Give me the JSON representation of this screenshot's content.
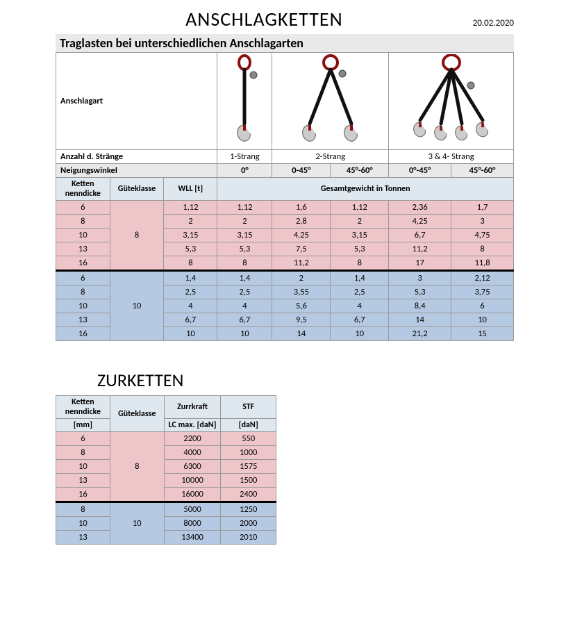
{
  "title1": "ANSCHLAGKETTEN",
  "date": "20.02.2020",
  "subtitle1": "Traglasten bei unterschiedlichen Anschlagarten",
  "labels": {
    "anschlagart": "Anschlagart",
    "anzahl": "Anzahl d. Stränge",
    "neigung": "Neigungswinkel",
    "ketten": "Ketten nenndicke",
    "guete": "Güteklasse",
    "wll": "WLL [t]",
    "gesamt": "Gesamtgewicht in Tonnen",
    "mm": "[mm]",
    "zurr": "Zurrkraft",
    "stf": "STF",
    "lcmax": "LC max. [daN]",
    "dan": "[daN]"
  },
  "straenge": [
    "1-Strang",
    "2-Strang",
    "3 & 4- Strang"
  ],
  "winkel": [
    "0°",
    "0-45°",
    "45°-60°",
    "0°-45°",
    "45°-60°"
  ],
  "guete_groups": [
    {
      "klasse": "8",
      "group_color": "pink",
      "rows": [
        {
          "d": "6",
          "v": [
            "1,12",
            "1,12",
            "1,6",
            "1,12",
            "2,36",
            "1,7"
          ]
        },
        {
          "d": "8",
          "v": [
            "2",
            "2",
            "2,8",
            "2",
            "4,25",
            "3"
          ]
        },
        {
          "d": "10",
          "v": [
            "3,15",
            "3,15",
            "4,25",
            "3,15",
            "6,7",
            "4,75"
          ]
        },
        {
          "d": "13",
          "v": [
            "5,3",
            "5,3",
            "7,5",
            "5,3",
            "11,2",
            "8"
          ]
        },
        {
          "d": "16",
          "v": [
            "8",
            "8",
            "11,2",
            "8",
            "17",
            "11,8"
          ]
        }
      ]
    },
    {
      "klasse": "10",
      "group_color": "blue",
      "rows": [
        {
          "d": "6",
          "v": [
            "1,4",
            "1,4",
            "2",
            "1,4",
            "3",
            "2,12"
          ]
        },
        {
          "d": "8",
          "v": [
            "2,5",
            "2,5",
            "3,55",
            "2,5",
            "5,3",
            "3,75"
          ]
        },
        {
          "d": "10",
          "v": [
            "4",
            "4",
            "5,6",
            "4",
            "8,4",
            "6"
          ]
        },
        {
          "d": "13",
          "v": [
            "6,7",
            "6,7",
            "9,5",
            "6,7",
            "14",
            "10"
          ]
        },
        {
          "d": "16",
          "v": [
            "10",
            "10",
            "14",
            "10",
            "21,2",
            "15"
          ]
        }
      ]
    }
  ],
  "title2": "ZURKETTEN",
  "guete_groups2": [
    {
      "klasse": "8",
      "group_color": "pink",
      "rows": [
        {
          "d": "6",
          "lc": "2200",
          "stf": "550"
        },
        {
          "d": "8",
          "lc": "4000",
          "stf": "1000"
        },
        {
          "d": "10",
          "lc": "6300",
          "stf": "1575"
        },
        {
          "d": "13",
          "lc": "10000",
          "stf": "1500"
        },
        {
          "d": "16",
          "lc": "16000",
          "stf": "2400"
        }
      ]
    },
    {
      "klasse": "10",
      "group_color": "blue",
      "rows": [
        {
          "d": "8",
          "lc": "5000",
          "stf": "1250"
        },
        {
          "d": "10",
          "lc": "8000",
          "stf": "2000"
        },
        {
          "d": "13",
          "lc": "13400",
          "stf": "2010"
        }
      ]
    }
  ],
  "colors": {
    "ring": "#8a0f0f",
    "chain": "#111111",
    "hook_outline": "#555",
    "hook_fill": "#ccc"
  },
  "col_widths_t1": [
    78,
    78,
    78,
    78,
    84,
    84,
    90,
    90
  ],
  "col_widths_t2": [
    78,
    78,
    82,
    80
  ]
}
